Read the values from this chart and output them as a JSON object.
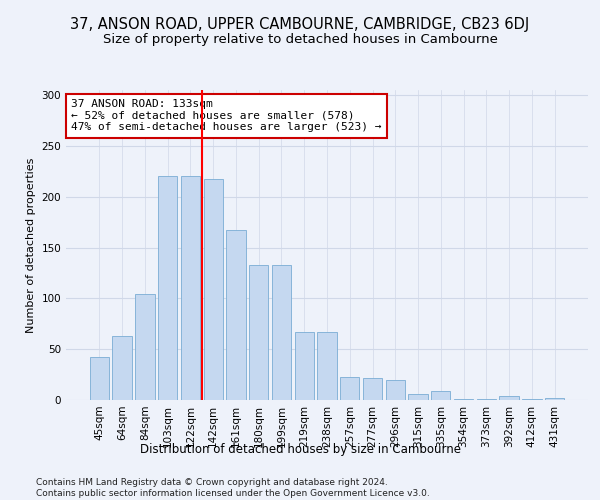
{
  "title_line1": "37, ANSON ROAD, UPPER CAMBOURNE, CAMBRIDGE, CB23 6DJ",
  "title_line2": "Size of property relative to detached houses in Cambourne",
  "xlabel": "Distribution of detached houses by size in Cambourne",
  "ylabel": "Number of detached properties",
  "categories": [
    "45sqm",
    "64sqm",
    "84sqm",
    "103sqm",
    "122sqm",
    "142sqm",
    "161sqm",
    "180sqm",
    "199sqm",
    "219sqm",
    "238sqm",
    "257sqm",
    "277sqm",
    "296sqm",
    "315sqm",
    "335sqm",
    "354sqm",
    "373sqm",
    "392sqm",
    "412sqm",
    "431sqm"
  ],
  "values": [
    42,
    63,
    104,
    220,
    220,
    217,
    167,
    133,
    133,
    67,
    67,
    23,
    22,
    20,
    6,
    9,
    1,
    1,
    4,
    1,
    2
  ],
  "bar_color": "#c5d8f0",
  "bar_edge_color": "#7aadd4",
  "vline_x": 4.5,
  "vline_color": "red",
  "annotation_text": "37 ANSON ROAD: 133sqm\n← 52% of detached houses are smaller (578)\n47% of semi-detached houses are larger (523) →",
  "annotation_box_color": "white",
  "annotation_box_edge_color": "#cc0000",
  "ylim": [
    0,
    305
  ],
  "yticks": [
    0,
    50,
    100,
    150,
    200,
    250,
    300
  ],
  "background_color": "#eef2fa",
  "grid_color": "#d0d8e8",
  "footer": "Contains HM Land Registry data © Crown copyright and database right 2024.\nContains public sector information licensed under the Open Government Licence v3.0.",
  "title_fontsize": 10.5,
  "subtitle_fontsize": 9.5,
  "xlabel_fontsize": 8.5,
  "ylabel_fontsize": 8,
  "tick_fontsize": 7.5,
  "annotation_fontsize": 8,
  "footer_fontsize": 6.5
}
